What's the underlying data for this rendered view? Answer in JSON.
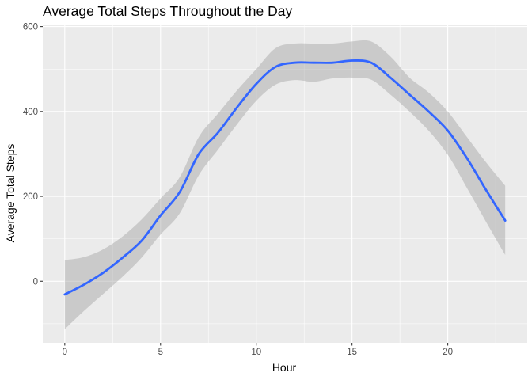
{
  "chart_data": {
    "type": "line",
    "title": "Average Total Steps Throughout the Day",
    "xlabel": "Hour",
    "ylabel": "Average Total Steps",
    "xlim": [
      -1.15,
      24.15
    ],
    "ylim": [
      -145,
      603
    ],
    "xticks": [
      0,
      5,
      10,
      15,
      20
    ],
    "yticks": [
      0,
      200,
      400,
      600
    ],
    "grid": true,
    "colors": {
      "panel": "#ebebeb",
      "grid": "#ffffff",
      "line": "#3366ff",
      "ribbon": "#999999"
    },
    "series": [
      {
        "x": [
          0,
          1,
          2,
          3,
          4,
          5,
          6,
          7,
          8,
          9,
          10,
          11,
          12,
          13,
          14,
          15,
          16,
          17,
          18,
          19,
          20,
          21,
          22,
          23
        ],
        "y": [
          -31,
          -8,
          20,
          55,
          95,
          155,
          210,
          300,
          350,
          410,
          465,
          505,
          515,
          515,
          515,
          520,
          515,
          480,
          440,
          400,
          355,
          290,
          215,
          143
        ],
        "lower": [
          -113,
          -70,
          -30,
          10,
          55,
          110,
          160,
          250,
          310,
          370,
          425,
          463,
          474,
          470,
          478,
          480,
          475,
          440,
          400,
          355,
          298,
          220,
          140,
          62
        ],
        "upper": [
          50,
          57,
          75,
          105,
          145,
          195,
          245,
          340,
          395,
          450,
          500,
          549,
          560,
          560,
          560,
          565,
          565,
          530,
          480,
          445,
          400,
          340,
          280,
          225
        ]
      }
    ]
  }
}
